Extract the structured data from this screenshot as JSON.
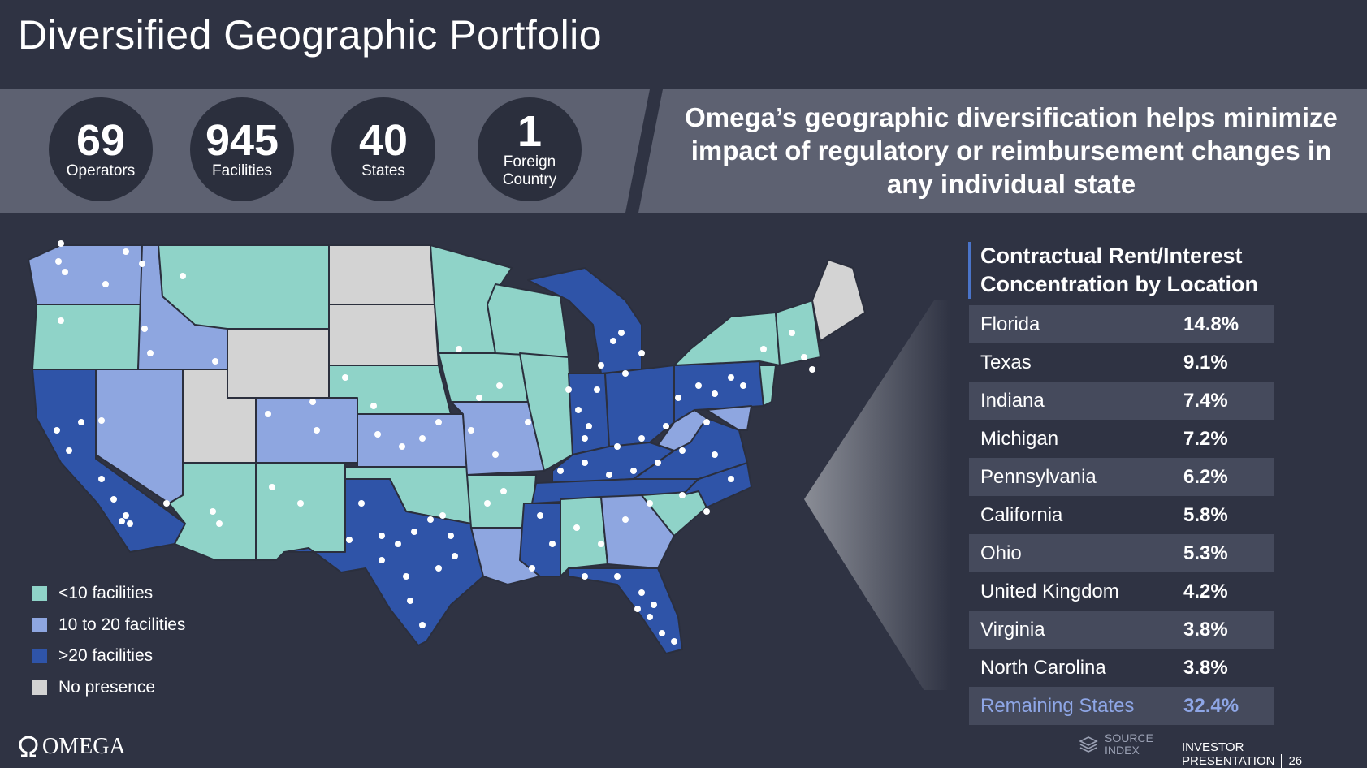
{
  "title": "Diversified Geographic Portfolio",
  "stats": [
    {
      "value": "69",
      "label": "Operators"
    },
    {
      "value": "945",
      "label": "Facilities"
    },
    {
      "value": "40",
      "label": "States"
    },
    {
      "value": "1",
      "label": "Foreign Country"
    }
  ],
  "headline": "Omega’s geographic diversification helps minimize impact of regulatory or reimbursement changes in any individual state",
  "legend": [
    {
      "label": "<10 facilities",
      "color": "#8fd3c8"
    },
    {
      "label": "10 to 20 facilities",
      "color": "#8ea6e0"
    },
    {
      "label": ">20 facilities",
      "color": "#2f54a8"
    },
    {
      "label": "No presence",
      "color": "#d3d3d3"
    }
  ],
  "concentration": {
    "title_line1": "Contractual Rent/Interest",
    "title_line2": "Concentration by Location",
    "rows": [
      {
        "name": "Florida",
        "value": "14.8%"
      },
      {
        "name": "Texas",
        "value": "9.1%"
      },
      {
        "name": "Indiana",
        "value": "7.4%"
      },
      {
        "name": "Michigan",
        "value": "7.2%"
      },
      {
        "name": "Pennsylvania",
        "value": "6.2%"
      },
      {
        "name": "California",
        "value": "5.8%"
      },
      {
        "name": "Ohio",
        "value": "5.3%"
      },
      {
        "name": "United Kingdom",
        "value": "4.2%"
      },
      {
        "name": "Virginia",
        "value": "3.8%"
      },
      {
        "name": "North Carolina",
        "value": "3.8%"
      },
      {
        "name": "Remaining States",
        "value": "32.4%"
      }
    ]
  },
  "footer": {
    "logo": "OMEGA",
    "source_line1": "SOURCE",
    "source_line2": "INDEX",
    "presentation": "INVESTOR PRESENTATION",
    "page": "26"
  }
}
